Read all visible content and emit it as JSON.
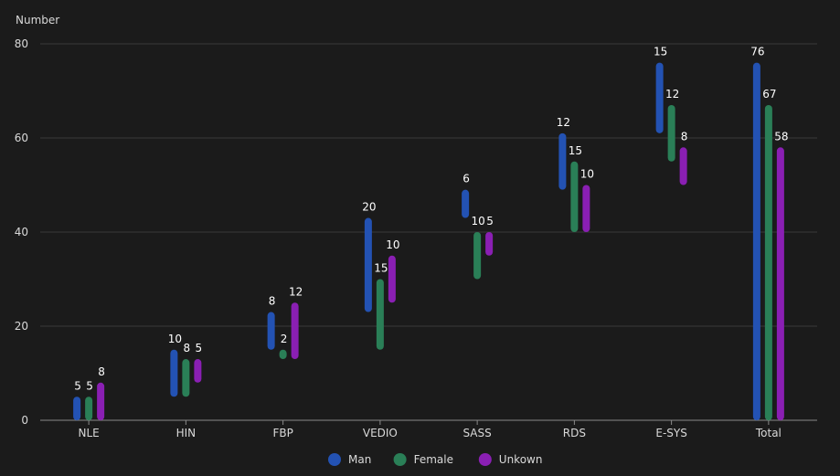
{
  "chart_data": {
    "type": "bar",
    "subtype": "waterfall-floating-range",
    "ylabel": "Number",
    "ylim": [
      0,
      80
    ],
    "yticks": [
      0,
      20,
      40,
      60,
      80
    ],
    "grid": true,
    "legend_position": "bottom-center",
    "categories": [
      "NLE",
      "HIN",
      "FBP",
      "VEDIO",
      "SASS",
      "RDS",
      "E-SYS",
      "Total"
    ],
    "series": [
      {
        "name": "Man",
        "color": "#2352b3",
        "values": [
          5,
          10,
          8,
          20,
          6,
          12,
          15,
          76
        ],
        "ranges": [
          [
            0,
            5
          ],
          [
            5,
            15
          ],
          [
            15,
            23
          ],
          [
            23,
            43
          ],
          [
            43,
            49
          ],
          [
            49,
            61
          ],
          [
            61,
            76
          ],
          [
            0,
            76
          ]
        ]
      },
      {
        "name": "Female",
        "color": "#2a7f57",
        "values": [
          5,
          8,
          2,
          15,
          10,
          15,
          12,
          67
        ],
        "ranges": [
          [
            0,
            5
          ],
          [
            5,
            13
          ],
          [
            13,
            15
          ],
          [
            15,
            30
          ],
          [
            30,
            40
          ],
          [
            40,
            55
          ],
          [
            55,
            67
          ],
          [
            0,
            67
          ]
        ]
      },
      {
        "name": "Unkown",
        "color": "#8a1fb3",
        "values": [
          8,
          5,
          12,
          10,
          5,
          10,
          8,
          58
        ],
        "ranges": [
          [
            0,
            8
          ],
          [
            8,
            13
          ],
          [
            13,
            25
          ],
          [
            25,
            35
          ],
          [
            35,
            40
          ],
          [
            40,
            50
          ],
          [
            50,
            58
          ],
          [
            0,
            58
          ]
        ]
      }
    ]
  }
}
